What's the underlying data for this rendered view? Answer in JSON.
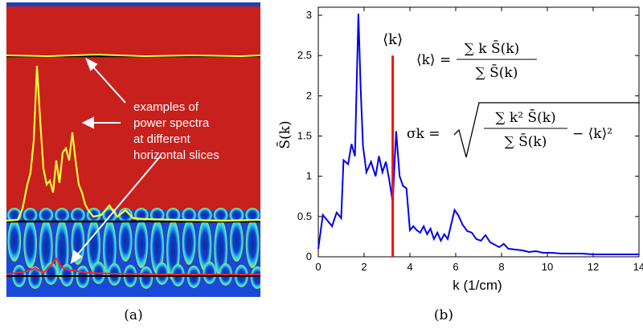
{
  "panel_a": {
    "caption": "(a)",
    "annotation_lines": [
      "examples of",
      "power spectra",
      "at different",
      "horizontal slices"
    ],
    "colors": {
      "background_red": "#c8201c",
      "trace_yellow": "#ffff33",
      "trace_red": "#ff2222",
      "line_black": "#000000",
      "blob_blue": "#0a2ea8",
      "blob_cyan": "#22c8ff"
    }
  },
  "panel_b": {
    "caption": "(b)",
    "mean_k_label": "⟨k⟩",
    "formula_mean": {
      "lhs": "⟨k⟩ =",
      "numerator": "∑ k S̄(k)",
      "denominator": "∑ S̄(k)"
    },
    "formula_sigma": {
      "lhs": "σk =",
      "numerator": "∑ k² S̄(k)",
      "denominator": "∑ S̄(k)",
      "tail": "− ⟨k⟩²"
    }
  },
  "chart_data": {
    "type": "line",
    "xlabel": "k  (1/cm)",
    "ylabel": "S̄(k)",
    "xlim": [
      0,
      14
    ],
    "ylim": [
      0,
      3.1
    ],
    "xticks": [
      0,
      2,
      4,
      6,
      8,
      10,
      12,
      14
    ],
    "yticks": [
      0,
      0.5,
      1,
      1.5,
      2,
      2.5,
      3
    ],
    "ytick_labels": [
      "0",
      "0.5",
      "1",
      "1.5",
      "2",
      "2.5",
      "3"
    ],
    "grid": false,
    "series": [
      {
        "color": "#0000ee",
        "x": [
          0.0,
          0.2,
          0.4,
          0.6,
          0.8,
          1.0,
          1.1,
          1.3,
          1.45,
          1.6,
          1.75,
          1.85,
          1.95,
          2.1,
          2.3,
          2.5,
          2.65,
          2.8,
          2.95,
          3.1,
          3.25,
          3.4,
          3.55,
          3.7,
          3.85,
          4.0,
          4.15,
          4.3,
          4.45,
          4.6,
          4.75,
          4.9,
          5.05,
          5.2,
          5.35,
          5.5,
          5.65,
          5.8,
          5.95,
          6.1,
          6.3,
          6.5,
          6.7,
          6.9,
          7.1,
          7.3,
          7.5,
          7.7,
          7.9,
          8.1,
          8.3,
          8.6,
          8.9,
          9.2,
          9.5,
          9.8,
          10.2,
          10.6,
          11.0,
          11.5,
          12.0,
          12.5,
          13.0,
          13.5,
          14.0
        ],
        "y": [
          0.1,
          0.52,
          0.45,
          0.38,
          0.55,
          0.48,
          1.2,
          1.15,
          1.4,
          1.25,
          3.02,
          2.1,
          1.38,
          1.05,
          1.18,
          1.0,
          1.25,
          1.05,
          1.18,
          0.95,
          0.68,
          1.56,
          1.0,
          0.88,
          0.85,
          0.33,
          0.38,
          0.33,
          0.3,
          0.38,
          0.28,
          0.35,
          0.22,
          0.3,
          0.2,
          0.28,
          0.22,
          0.4,
          0.58,
          0.52,
          0.4,
          0.32,
          0.3,
          0.22,
          0.2,
          0.27,
          0.18,
          0.15,
          0.12,
          0.16,
          0.1,
          0.09,
          0.08,
          0.06,
          0.07,
          0.05,
          0.05,
          0.04,
          0.04,
          0.04,
          0.03,
          0.03,
          0.03,
          0.03,
          0.03
        ]
      }
    ],
    "marker": {
      "x": 3.25,
      "y_top": 2.5,
      "color": "#ee1111"
    }
  }
}
